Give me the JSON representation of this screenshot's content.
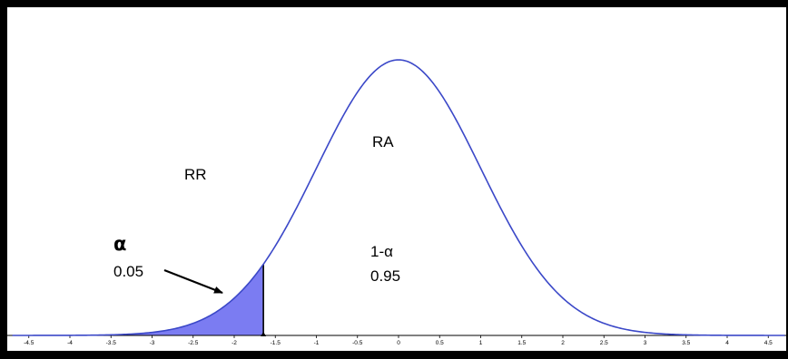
{
  "chart_data": {
    "type": "area",
    "title": "",
    "xlabel": "",
    "ylabel": "",
    "distribution": "standard normal",
    "mean": 0,
    "sd": 1,
    "critical_value": -1.645,
    "shaded_region": "left tail",
    "xlim": [
      -4.7,
      4.7
    ],
    "x_ticks": [
      -4.5,
      -4,
      -3.5,
      -3,
      -2.5,
      -2,
      -1.5,
      -1,
      -0.5,
      0,
      0.5,
      1,
      1.5,
      2,
      2.5,
      3,
      3.5,
      4,
      4.5
    ],
    "x_tick_labels": [
      "-4.5",
      "-4",
      "-3.5",
      "-3",
      "-2.5",
      "-2",
      "-1.5",
      "-1",
      "-0.5",
      "0",
      "0.5",
      "1",
      "1.5",
      "2",
      "2.5",
      "3",
      "3.5",
      "4",
      "4.5"
    ],
    "grid": false,
    "annotations": {
      "rr_label": "RR",
      "ra_label": "RA",
      "alpha_symbol": "α",
      "alpha_value": "0.05",
      "one_minus_alpha_label": "1-α",
      "one_minus_alpha_value": "0.95"
    },
    "colors": {
      "curve": "#3b48c8",
      "shaded_fill": "#7b7cf2",
      "axis": "#000000",
      "frame": "#000000"
    }
  }
}
